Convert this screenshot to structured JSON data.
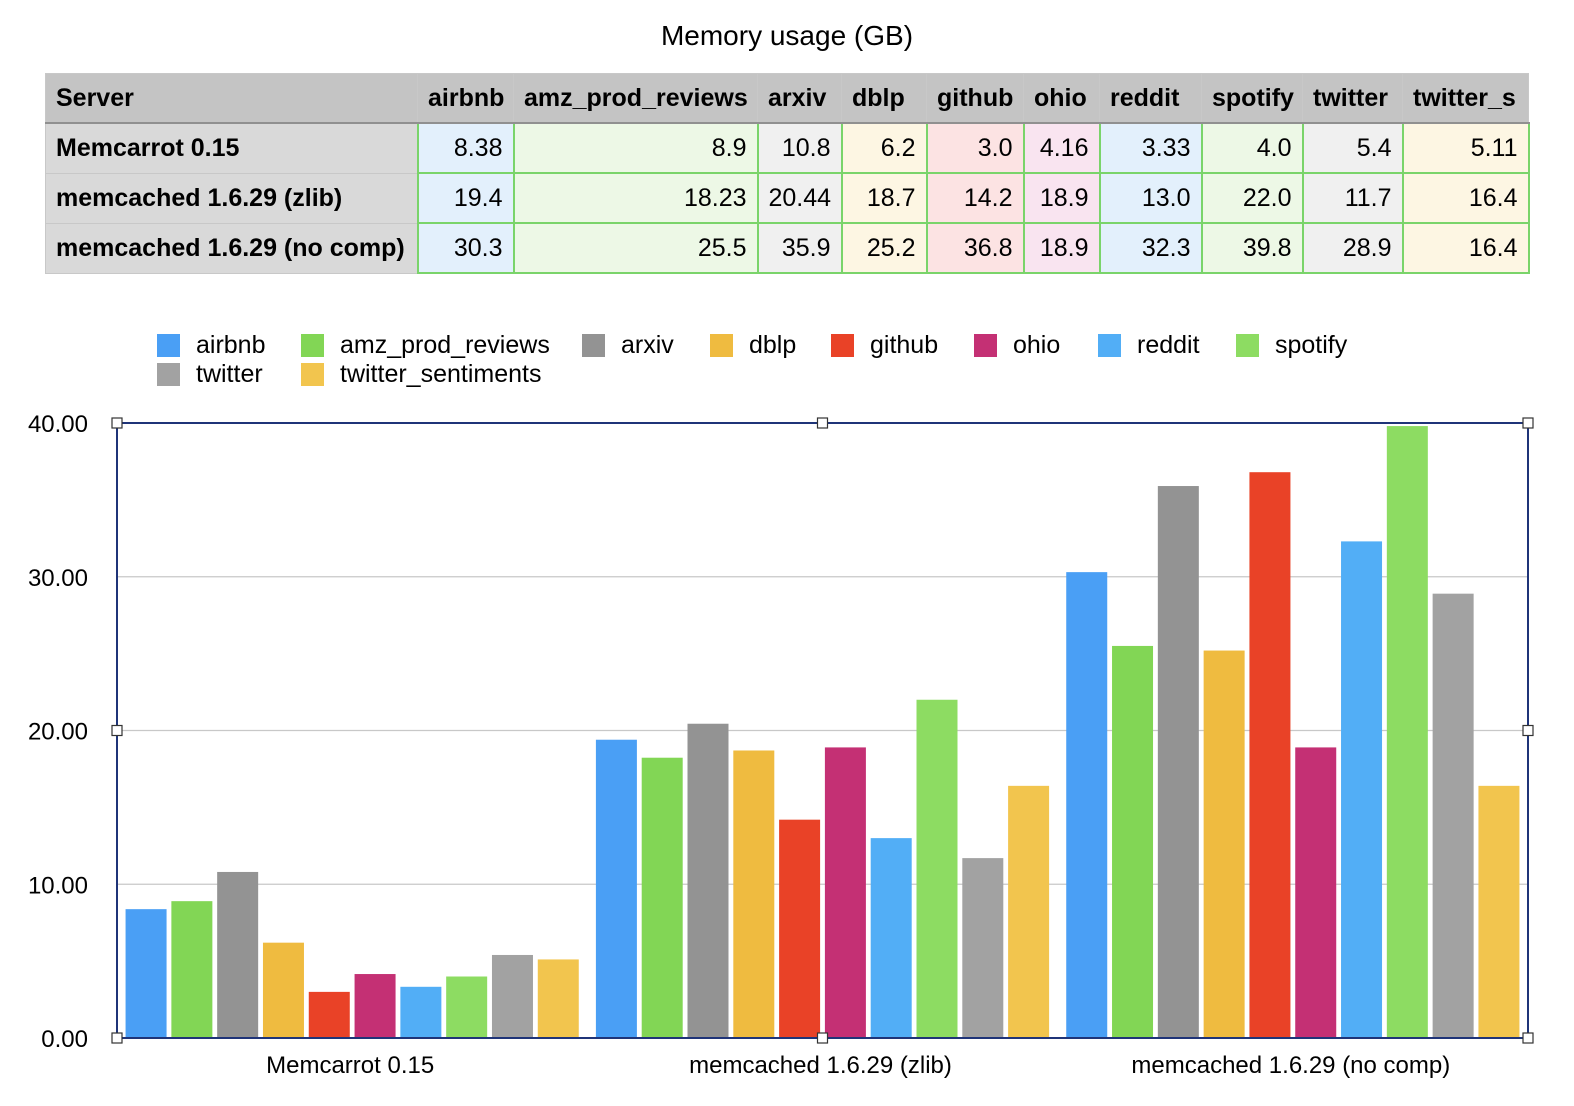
{
  "title": "Memory usage (GB)",
  "table": {
    "header": [
      "Server",
      "airbnb",
      "amz_prod_reviews",
      "arxiv",
      "dblp",
      "github",
      "ohio",
      "reddit",
      "spotify",
      "twitter",
      "twitter_s"
    ],
    "column_colors": [
      "#e3f0fc",
      "#edf8e6",
      "#f0f0f0",
      "#fdf6e3",
      "#fce3e3",
      "#f9e4f0",
      "#e3f0fc",
      "#edf8e6",
      "#f0f0f0",
      "#fdf6e3"
    ],
    "rows": [
      {
        "server": "Memcarrot 0.15",
        "values": [
          "8.38",
          "8.9",
          "10.8",
          "6.2",
          "3.0",
          "4.16",
          "3.33",
          "4.0",
          "5.4",
          "5.11"
        ]
      },
      {
        "server": "memcached 1.6.29 (zlib)",
        "values": [
          "19.4",
          "18.23",
          "20.44",
          "18.7",
          "14.2",
          "18.9",
          "13.0",
          "22.0",
          "11.7",
          "16.4"
        ]
      },
      {
        "server": "memcached 1.6.29 (no comp)",
        "values": [
          "30.3",
          "25.5",
          "35.9",
          "25.2",
          "36.8",
          "18.9",
          "32.3",
          "39.8",
          "28.9",
          "16.4"
        ]
      }
    ]
  },
  "chart_data": {
    "type": "bar",
    "categories": [
      "Memcarrot 0.15",
      "memcached 1.6.29 (zlib)",
      "memcached 1.6.29 (no comp)"
    ],
    "series": [
      {
        "name": "airbnb",
        "color": "#4a9ff5",
        "values": [
          8.38,
          19.4,
          30.3
        ]
      },
      {
        "name": "amz_prod_reviews",
        "color": "#82d655",
        "values": [
          8.9,
          18.23,
          25.5
        ]
      },
      {
        "name": "arxiv",
        "color": "#939393",
        "values": [
          10.8,
          20.44,
          35.9
        ]
      },
      {
        "name": "dblp",
        "color": "#efbb40",
        "values": [
          6.2,
          18.7,
          25.2
        ]
      },
      {
        "name": "github",
        "color": "#e94227",
        "values": [
          3.0,
          14.2,
          36.8
        ]
      },
      {
        "name": "ohio",
        "color": "#c43074",
        "values": [
          4.16,
          18.9,
          18.9
        ]
      },
      {
        "name": "reddit",
        "color": "#52aef6",
        "values": [
          3.33,
          13.0,
          32.3
        ]
      },
      {
        "name": "spotify",
        "color": "#8ddc62",
        "values": [
          4.0,
          22.0,
          39.8
        ]
      },
      {
        "name": "twitter",
        "color": "#a2a2a2",
        "values": [
          5.4,
          11.7,
          28.9
        ]
      },
      {
        "name": "twitter_sentiments",
        "color": "#f2c54e",
        "values": [
          5.11,
          16.4,
          16.4
        ]
      }
    ],
    "ylim": [
      0,
      40
    ],
    "yticks": [
      "0.00",
      "10.00",
      "20.00",
      "30.00",
      "40.00"
    ],
    "grid": true,
    "legend_position": "top"
  }
}
